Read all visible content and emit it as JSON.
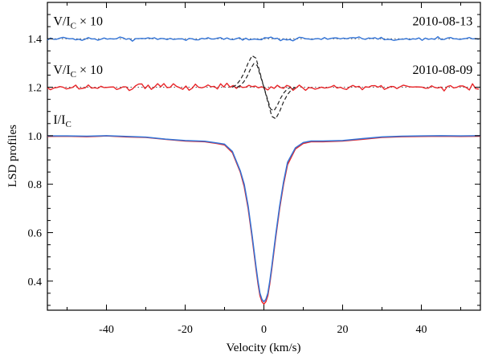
{
  "chart_data": {
    "type": "line",
    "xlabel": "Velocity (km/s)",
    "ylabel": "LSD profiles",
    "xlim": [
      -55,
      55
    ],
    "ylim": [
      0.28,
      1.55
    ],
    "xticks": [
      -40,
      -20,
      0,
      20,
      40
    ],
    "yticks": [
      0.4,
      0.6,
      0.8,
      1.0,
      1.2,
      1.4
    ],
    "ytick_labels": [
      "0.4",
      "0.6",
      "0.8",
      "1.0",
      "1.2",
      "1.4"
    ],
    "grid": false,
    "colors": {
      "red": "#e8262a",
      "blue": "#3273d6",
      "dotted": "#555555",
      "model": "#222222"
    },
    "annotations": [
      {
        "text": "V/I",
        "sub": "C",
        "suffix": " × 10",
        "x": -53.5,
        "y": 1.455
      },
      {
        "text": "2010-08-13",
        "x": 53,
        "y": 1.455,
        "anchor": "end"
      },
      {
        "text": "V/I",
        "sub": "C",
        "suffix": " × 10",
        "x": -53.5,
        "y": 1.255
      },
      {
        "text": "2010-08-09",
        "x": 53,
        "y": 1.255,
        "anchor": "end"
      },
      {
        "text": "I/I",
        "sub": "C",
        "suffix": "",
        "x": -53.5,
        "y": 1.05
      }
    ],
    "reference_lines": [
      {
        "y": 1.4,
        "style": "dotted"
      },
      {
        "y": 1.2,
        "style": "dotted"
      }
    ],
    "stokes_i": {
      "x": [
        -55,
        -50,
        -45,
        -40,
        -35,
        -30,
        -25,
        -20,
        -15,
        -12,
        -10,
        -8,
        -6,
        -5,
        -4,
        -3,
        -2,
        -1.5,
        -1,
        -0.5,
        0,
        0.5,
        1,
        1.5,
        2,
        3,
        4,
        5,
        6,
        8,
        10,
        12,
        15,
        20,
        25,
        30,
        35,
        40,
        45,
        50,
        55
      ],
      "red": [
        0.997,
        0.998,
        0.996,
        0.999,
        0.995,
        0.993,
        0.985,
        0.978,
        0.975,
        0.968,
        0.962,
        0.93,
        0.85,
        0.79,
        0.7,
        0.58,
        0.45,
        0.39,
        0.34,
        0.315,
        0.305,
        0.315,
        0.34,
        0.39,
        0.45,
        0.58,
        0.7,
        0.8,
        0.88,
        0.945,
        0.968,
        0.975,
        0.975,
        0.978,
        0.985,
        0.993,
        0.996,
        0.997,
        0.998,
        0.997,
        0.998
      ],
      "blue": [
        0.999,
        0.999,
        0.998,
        1.0,
        0.997,
        0.994,
        0.986,
        0.98,
        0.977,
        0.97,
        0.965,
        0.935,
        0.855,
        0.8,
        0.71,
        0.59,
        0.46,
        0.4,
        0.35,
        0.325,
        0.315,
        0.325,
        0.35,
        0.4,
        0.46,
        0.59,
        0.71,
        0.81,
        0.89,
        0.95,
        0.972,
        0.978,
        0.978,
        0.98,
        0.988,
        0.995,
        0.998,
        0.999,
        1.0,
        0.999,
        1.0
      ]
    },
    "stokes_v": {
      "blue": {
        "date": "2010-08-13",
        "offset": 1.4,
        "noise": 0.006
      },
      "red": {
        "date": "2010-08-09",
        "offset": 1.2,
        "noise": 0.012
      }
    },
    "zeeman_model": {
      "offset": 1.2,
      "x": [
        -8,
        -7,
        -6,
        -5,
        -4,
        -3,
        -2,
        -1,
        0,
        1,
        2,
        3,
        4,
        5,
        6,
        7,
        8
      ],
      "y": [
        0.0,
        0.01,
        0.03,
        0.06,
        0.1,
        0.13,
        0.12,
        0.06,
        0.0,
        -0.06,
        -0.12,
        -0.13,
        -0.1,
        -0.06,
        -0.03,
        -0.01,
        0.0
      ]
    }
  }
}
